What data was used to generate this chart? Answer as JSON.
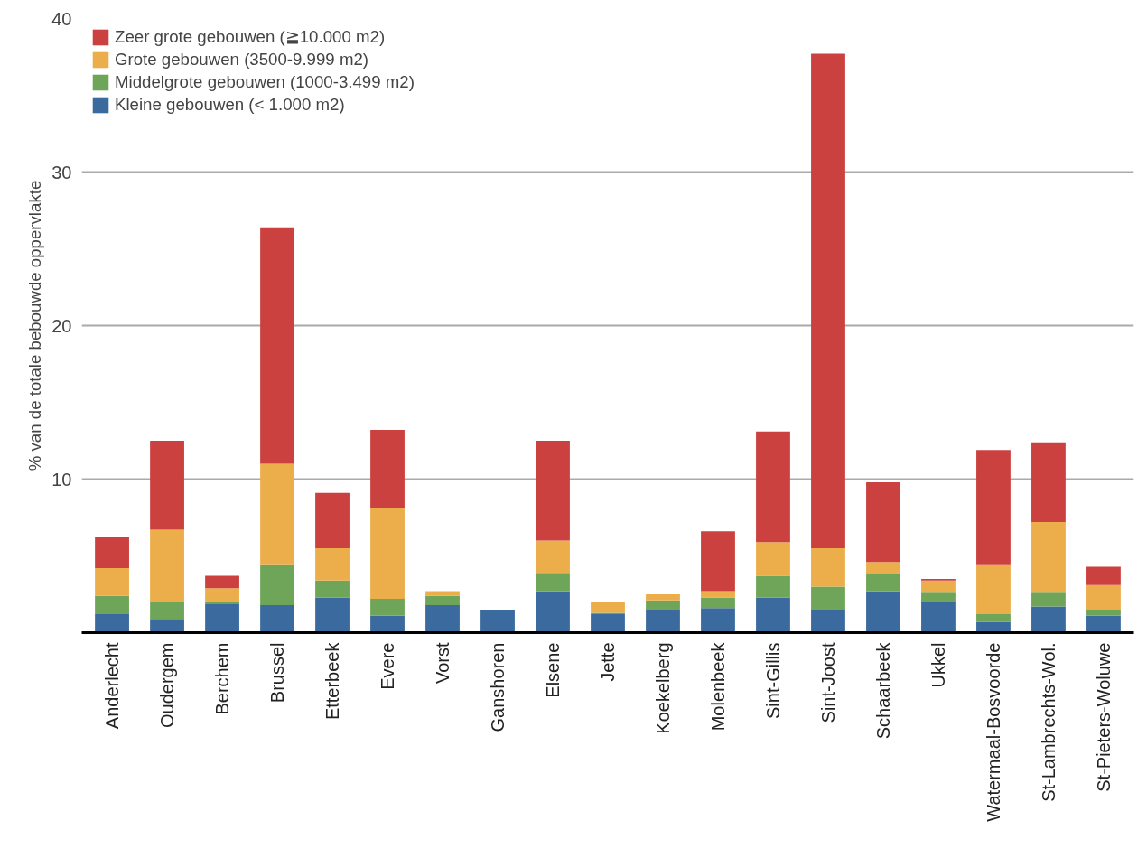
{
  "chart_data": {
    "type": "bar",
    "stacked": true,
    "ylabel": "% van de totale bebouwde oppervlakte",
    "categories": [
      "Anderlecht",
      "Oudergem",
      "Berchem",
      "Brussel",
      "Etterbeek",
      "Evere",
      "Vorst",
      "Ganshoren",
      "Elsene",
      "Jette",
      "Koekelberg",
      "Molenbeek",
      "Sint-Gillis",
      "Sint-Joost",
      "Schaarbeek",
      "Ukkel",
      "Watermaal-Bosvoorde",
      "St-Lambrechts-Wol.",
      "St-Pieters-Woluwe"
    ],
    "series": [
      {
        "name": "Kleine gebouwen (< 1.000 m2)",
        "color": "#3b6b9e",
        "values": [
          1.2,
          0.9,
          1.9,
          1.8,
          2.3,
          1.1,
          1.8,
          1.5,
          2.7,
          1.2,
          1.5,
          1.6,
          2.3,
          1.5,
          2.7,
          2.0,
          0.7,
          1.7,
          1.1
        ]
      },
      {
        "name": "Middelgrote gebouwen (1000-3.499 m2)",
        "color": "#6ea558",
        "values": [
          1.2,
          1.1,
          0.1,
          2.6,
          1.1,
          1.1,
          0.6,
          0,
          1.2,
          0.1,
          0.6,
          0.7,
          1.4,
          1.5,
          1.1,
          0.6,
          0.5,
          0.9,
          0.4
        ]
      },
      {
        "name": "Grote gebouwen (3500-9.999 m2)",
        "color": "#ecad4b",
        "values": [
          1.8,
          4.7,
          0.9,
          6.6,
          2.1,
          5.9,
          0.3,
          0,
          2.1,
          0.7,
          0.4,
          0.4,
          2.2,
          2.5,
          0.8,
          0.8,
          3.2,
          4.6,
          1.6
        ]
      },
      {
        "name": "Zeer grote gebouwen (≧10.000 m2)",
        "color": "#cb413f",
        "values": [
          2.0,
          5.8,
          0.8,
          15.4,
          3.6,
          5.1,
          0,
          0,
          6.5,
          0,
          0,
          3.9,
          7.2,
          32.2,
          5.2,
          0.1,
          7.5,
          5.2,
          1.2
        ]
      }
    ],
    "ylim": [
      0,
      40
    ],
    "yticks": [
      10,
      20,
      30,
      40
    ],
    "grid": "y",
    "legend": "top left"
  }
}
